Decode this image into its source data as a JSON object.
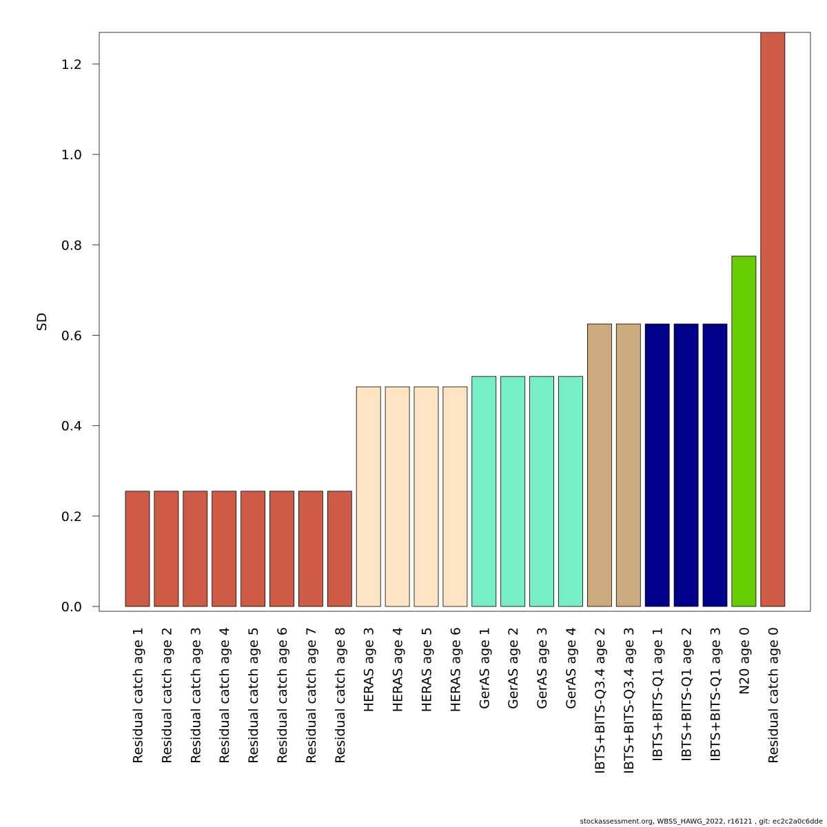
{
  "chart_data": {
    "type": "bar",
    "ylabel": "SD",
    "xlabel": "",
    "ylim": [
      0,
      1.27
    ],
    "yticks": [
      0.0,
      0.2,
      0.4,
      0.6,
      0.8,
      1.0,
      1.2
    ],
    "ytick_labels": [
      "0.0",
      "0.2",
      "0.4",
      "0.6",
      "0.8",
      "1.0",
      "1.2"
    ],
    "categories": [
      "Residual catch age 1",
      "Residual catch age 2",
      "Residual catch age 3",
      "Residual catch age 4",
      "Residual catch age 5",
      "Residual catch age 6",
      "Residual catch age 7",
      "Residual catch age 8",
      "HERAS age 3",
      "HERAS age 4",
      "HERAS age 5",
      "HERAS age 6",
      "GerAS age 1",
      "GerAS age 2",
      "GerAS age 3",
      "GerAS age 4",
      "IBTS+BITS-Q3.4 age 2",
      "IBTS+BITS-Q3.4 age 3",
      "IBTS+BITS-Q1 age 1",
      "IBTS+BITS-Q1 age 2",
      "IBTS+BITS-Q1 age 3",
      "N20 age 0",
      "Residual catch age 0"
    ],
    "values": [
      0.255,
      0.255,
      0.255,
      0.255,
      0.255,
      0.255,
      0.255,
      0.255,
      0.486,
      0.486,
      0.486,
      0.486,
      0.509,
      0.509,
      0.509,
      0.509,
      0.625,
      0.625,
      0.625,
      0.625,
      0.625,
      0.775,
      1.27
    ],
    "colors": [
      "#cd5b45",
      "#cd5b45",
      "#cd5b45",
      "#cd5b45",
      "#cd5b45",
      "#cd5b45",
      "#cd5b45",
      "#cd5b45",
      "#ffe4c4",
      "#ffe4c4",
      "#ffe4c4",
      "#ffe4c4",
      "#76eec6",
      "#76eec6",
      "#76eec6",
      "#76eec6",
      "#cdaa7d",
      "#cdaa7d",
      "#00008b",
      "#00008b",
      "#00008b",
      "#66cd00",
      "#cd5b45"
    ],
    "grid": false,
    "legend": "none"
  },
  "footer": "stockassessment.org, WBSS_HAWG_2022, r16121 , git: ec2c2a0c6dde"
}
